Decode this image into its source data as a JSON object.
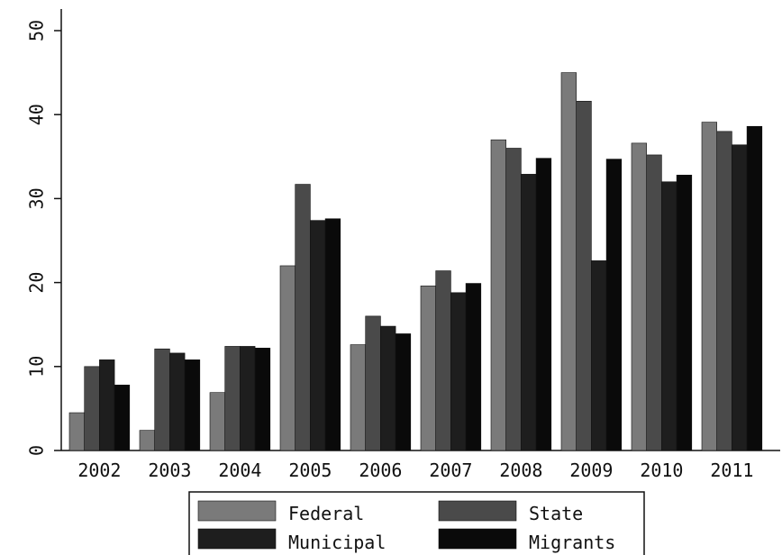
{
  "chart_data": {
    "type": "bar",
    "title": "",
    "xlabel": "",
    "ylabel": "",
    "ylim": [
      0,
      50
    ],
    "yticks": [
      "0",
      "10",
      "20",
      "30",
      "40",
      "50"
    ],
    "categories": [
      "2002",
      "2003",
      "2004",
      "2005",
      "2006",
      "2007",
      "2008",
      "2009",
      "2010",
      "2011"
    ],
    "series": [
      {
        "name": "Federal",
        "color": "#7a7a7a",
        "values": [
          4.5,
          2.4,
          6.9,
          22.0,
          12.6,
          19.6,
          37.0,
          45.0,
          36.6,
          39.1
        ]
      },
      {
        "name": "State",
        "color": "#4a4a4a",
        "values": [
          10.0,
          12.1,
          12.4,
          31.7,
          16.0,
          21.4,
          36.0,
          41.6,
          35.2,
          38.0
        ]
      },
      {
        "name": "Municipal",
        "color": "#1e1e1e",
        "values": [
          10.8,
          11.6,
          12.4,
          27.4,
          14.8,
          18.8,
          32.9,
          22.6,
          32.0,
          36.4
        ]
      },
      {
        "name": "Migrants",
        "color": "#0a0a0a",
        "values": [
          7.8,
          10.8,
          12.2,
          27.6,
          13.9,
          19.9,
          34.8,
          34.7,
          32.8,
          38.6
        ]
      }
    ],
    "grid": false,
    "legend_position": "bottom"
  }
}
